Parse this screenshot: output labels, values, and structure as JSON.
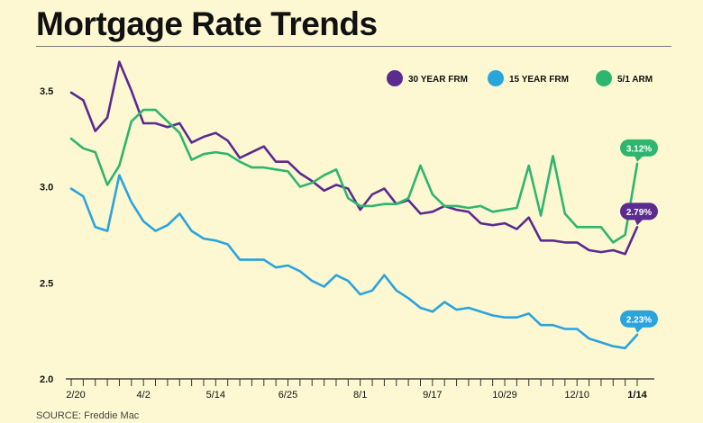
{
  "title": "Mortgage Rate Trends",
  "source": "SOURCE: Freddie Mac",
  "chart_data": {
    "type": "line",
    "title": "Mortgage Rate Trends",
    "xlabel": "",
    "ylabel": "",
    "ylim": [
      2.0,
      3.7
    ],
    "yticks": [
      "3.5",
      "3.0",
      "2.5",
      "2.0"
    ],
    "xtick_labels": [
      "2/20",
      "4/2",
      "5/14",
      "6/25",
      "8/1",
      "9/17",
      "10/29",
      "12/10",
      "1/14"
    ],
    "legend_position": "top-right",
    "grid": false,
    "series": [
      {
        "name": "30 YEAR FRM",
        "color": "#5b2b8f",
        "values": [
          3.49,
          3.45,
          3.29,
          3.36,
          3.65,
          3.5,
          3.33,
          3.33,
          3.31,
          3.33,
          3.23,
          3.26,
          3.28,
          3.24,
          3.15,
          3.18,
          3.21,
          3.13,
          3.13,
          3.07,
          3.03,
          2.98,
          3.01,
          2.99,
          2.88,
          2.96,
          2.99,
          2.91,
          2.93,
          2.86,
          2.87,
          2.9,
          2.88,
          2.87,
          2.81,
          2.8,
          2.81,
          2.78,
          2.84,
          2.72,
          2.72,
          2.71,
          2.71,
          2.67,
          2.66,
          2.67,
          2.65,
          2.79
        ],
        "end_label": "2.79%"
      },
      {
        "name": "15 YEAR FRM",
        "color": "#2aa4dd",
        "values": [
          2.99,
          2.95,
          2.79,
          2.77,
          3.06,
          2.92,
          2.82,
          2.77,
          2.8,
          2.86,
          2.77,
          2.73,
          2.72,
          2.7,
          2.62,
          2.62,
          2.62,
          2.58,
          2.59,
          2.56,
          2.51,
          2.48,
          2.54,
          2.51,
          2.44,
          2.46,
          2.54,
          2.46,
          2.42,
          2.37,
          2.35,
          2.4,
          2.36,
          2.37,
          2.35,
          2.33,
          2.32,
          2.32,
          2.34,
          2.28,
          2.28,
          2.26,
          2.26,
          2.21,
          2.19,
          2.17,
          2.16,
          2.23
        ],
        "end_label": "2.23%"
      },
      {
        "name": "5/1 ARM",
        "color": "#2eb56e",
        "values": [
          3.25,
          3.2,
          3.18,
          3.01,
          3.11,
          3.34,
          3.4,
          3.4,
          3.34,
          3.28,
          3.14,
          3.17,
          3.18,
          3.17,
          3.13,
          3.1,
          3.1,
          3.09,
          3.08,
          3.0,
          3.02,
          3.06,
          3.09,
          2.94,
          2.9,
          2.9,
          2.91,
          2.91,
          2.94,
          3.11,
          2.96,
          2.9,
          2.9,
          2.89,
          2.9,
          2.87,
          2.88,
          2.89,
          3.11,
          2.85,
          3.16,
          2.86,
          2.79,
          2.79,
          2.79,
          2.71,
          2.75,
          3.12
        ],
        "end_label": "3.12%"
      }
    ]
  }
}
